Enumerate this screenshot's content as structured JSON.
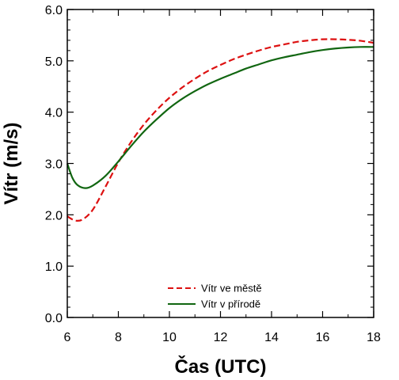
{
  "chart_data": {
    "type": "line",
    "title": "",
    "xlabel": "Čas (UTC)",
    "ylabel": "Vítr (m/s)",
    "xlim": [
      6,
      18
    ],
    "ylim": [
      0,
      6
    ],
    "xticks": [
      6,
      8,
      10,
      12,
      14,
      16,
      18
    ],
    "xtick_labels": [
      "6",
      "8",
      "10",
      "12",
      "14",
      "16",
      "18"
    ],
    "yticks": [
      0,
      1,
      2,
      3,
      4,
      5,
      6
    ],
    "ytick_labels": [
      "0.0",
      "1.0",
      "2.0",
      "3.0",
      "4.0",
      "5.0",
      "6.0"
    ],
    "grid": false,
    "legend_position": "bottom-center",
    "series": [
      {
        "name": "Vítr ve městě",
        "color": "#dd1111",
        "line_style": "dashed",
        "x": [
          6.0,
          6.3,
          6.6,
          7.0,
          7.5,
          8.0,
          8.5,
          9.0,
          9.5,
          10.0,
          10.5,
          11.0,
          11.5,
          12.0,
          12.5,
          13.0,
          13.5,
          14.0,
          14.5,
          15.0,
          15.5,
          16.0,
          16.5,
          17.0,
          17.5,
          18.0
        ],
        "y": [
          1.97,
          1.89,
          1.91,
          2.1,
          2.55,
          3.02,
          3.42,
          3.76,
          4.04,
          4.28,
          4.48,
          4.65,
          4.8,
          4.92,
          5.03,
          5.12,
          5.2,
          5.27,
          5.32,
          5.37,
          5.4,
          5.42,
          5.42,
          5.41,
          5.39,
          5.35
        ]
      },
      {
        "name": "Vítr v přírodě",
        "color": "#116611",
        "line_style": "solid",
        "x": [
          6.0,
          6.2,
          6.4,
          6.7,
          7.0,
          7.5,
          8.0,
          8.5,
          9.0,
          9.5,
          10.0,
          10.5,
          11.0,
          11.5,
          12.0,
          12.5,
          13.0,
          13.5,
          14.0,
          14.5,
          15.0,
          15.5,
          16.0,
          16.5,
          17.0,
          17.5,
          18.0
        ],
        "y": [
          3.0,
          2.72,
          2.58,
          2.52,
          2.57,
          2.76,
          3.04,
          3.34,
          3.62,
          3.86,
          4.08,
          4.26,
          4.41,
          4.54,
          4.65,
          4.75,
          4.85,
          4.93,
          5.01,
          5.07,
          5.12,
          5.17,
          5.21,
          5.24,
          5.26,
          5.27,
          5.27
        ]
      }
    ]
  }
}
